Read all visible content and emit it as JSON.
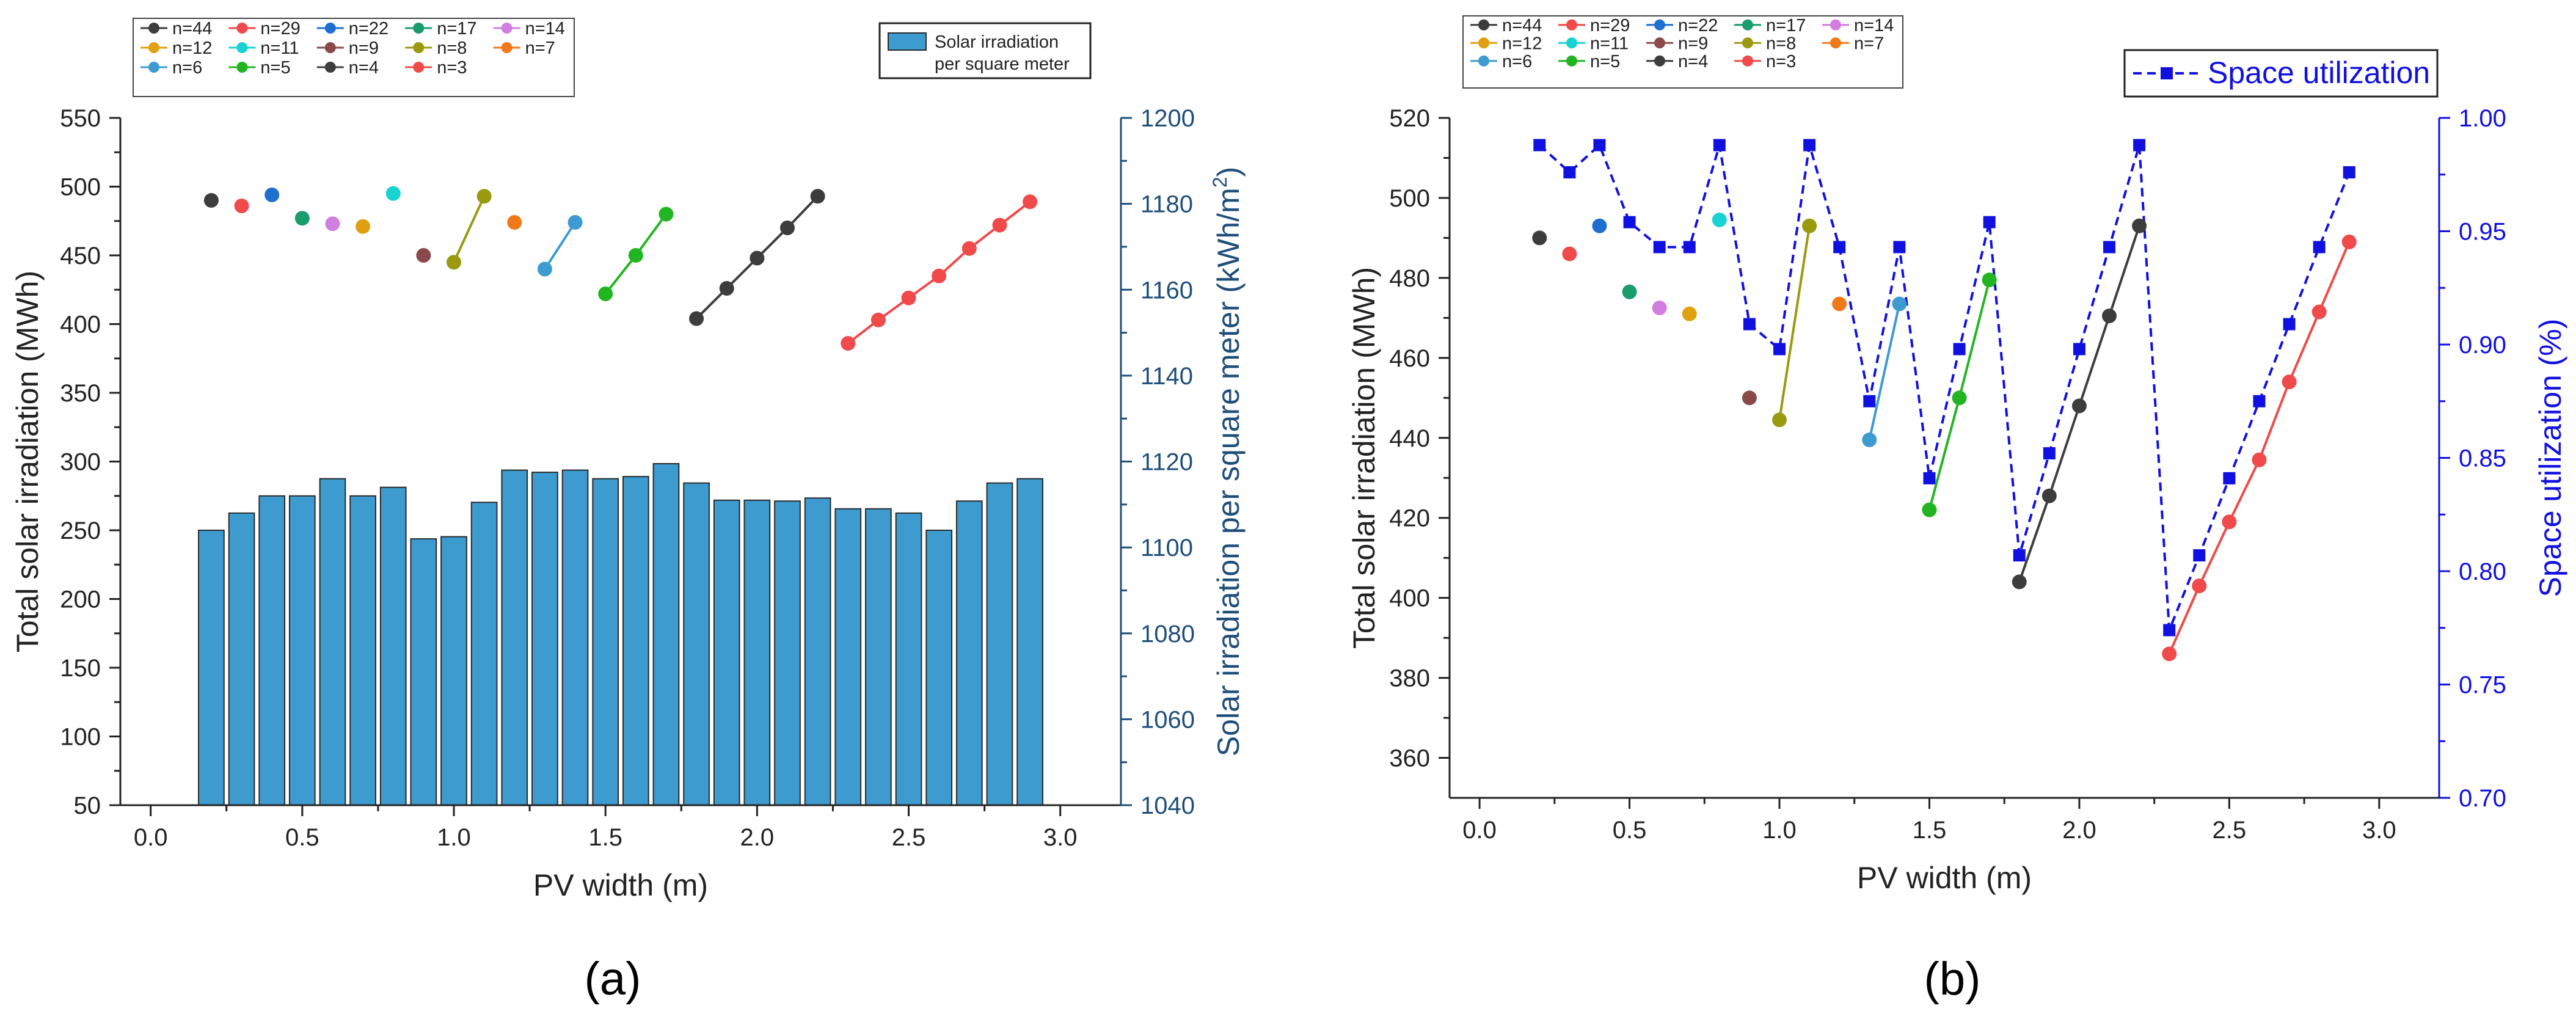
{
  "chart_data": [
    {
      "panel": "a",
      "caption": "(a)",
      "type": "scatter+bar",
      "xlabel": "PV width (m)",
      "ylabel_left": "Total solar irradiation (MWh)",
      "ylabel_right": "Solar irradiation  per square meter (kWh/m²)",
      "ylabel_right_parts": {
        "main": "Solar irradiation  per square meter (kWh/m",
        "sup": "2",
        "end": ")"
      },
      "xlim": [
        -0.1,
        3.2
      ],
      "ylim_left": [
        50,
        550
      ],
      "ylim_right": [
        1040,
        1200
      ],
      "xticks": [
        "0.0",
        "0.5",
        "1.0",
        "1.5",
        "2.0",
        "2.5",
        "3.0"
      ],
      "xtick_values": [
        0.0,
        0.5,
        1.0,
        1.5,
        2.0,
        2.5,
        3.0
      ],
      "yticks_left": [
        "50",
        "100",
        "150",
        "200",
        "250",
        "300",
        "350",
        "400",
        "450",
        "500",
        "550"
      ],
      "ytick_values_left": [
        50,
        100,
        150,
        200,
        250,
        300,
        350,
        400,
        450,
        500,
        550
      ],
      "yticks_right": [
        "1040",
        "1060",
        "1080",
        "1100",
        "1120",
        "1140",
        "1160",
        "1180",
        "1200"
      ],
      "ytick_values_right": [
        1040,
        1060,
        1080,
        1100,
        1120,
        1140,
        1160,
        1180,
        1200
      ],
      "bar_legend": [
        "Solar irradiation",
        "per square meter"
      ],
      "bar_color": "#3d9bd0",
      "bars": {
        "x": [
          0.2,
          0.3,
          0.4,
          0.5,
          0.6,
          0.7,
          0.8,
          0.9,
          1.0,
          1.1,
          1.2,
          1.3,
          1.4,
          1.5,
          1.6,
          1.7,
          1.8,
          1.9,
          2.0,
          2.1,
          2.2,
          2.3,
          2.4,
          2.5,
          2.6,
          2.7,
          2.8,
          2.9
        ],
        "values": [
          1104,
          1108,
          1112,
          1112,
          1116,
          1112,
          1114,
          1102,
          1102.5,
          1110.5,
          1118,
          1117.5,
          1118,
          1116,
          1116.5,
          1119.5,
          1115,
          1111,
          1111,
          1110.8,
          1111.5,
          1109,
          1109,
          1108,
          1104,
          1110.8,
          1115,
          1116
        ]
      },
      "series": [
        {
          "name": "n=44",
          "color": "#3d3d3d",
          "x": [
            0.2
          ],
          "y": [
            490
          ]
        },
        {
          "name": "n=29",
          "color": "#f04a4a",
          "x": [
            0.3
          ],
          "y": [
            486
          ]
        },
        {
          "name": "n=22",
          "color": "#1f6fd0",
          "x": [
            0.4
          ],
          "y": [
            494
          ]
        },
        {
          "name": "n=17",
          "color": "#1a9c6c",
          "x": [
            0.5
          ],
          "y": [
            477
          ]
        },
        {
          "name": "n=14",
          "color": "#d27ee0",
          "x": [
            0.6
          ],
          "y": [
            473
          ]
        },
        {
          "name": "n=12",
          "color": "#e0a010",
          "x": [
            0.7
          ],
          "y": [
            471
          ]
        },
        {
          "name": "n=11",
          "color": "#19d2d2",
          "x": [
            0.8
          ],
          "y": [
            495
          ]
        },
        {
          "name": "n=9",
          "color": "#8b4a4a",
          "x": [
            0.9
          ],
          "y": [
            450
          ]
        },
        {
          "name": "n=8",
          "color": "#9a9a10",
          "x": [
            1.0,
            1.1
          ],
          "y": [
            445,
            493
          ]
        },
        {
          "name": "n=7",
          "color": "#f07a1a",
          "x": [
            1.2
          ],
          "y": [
            474
          ]
        },
        {
          "name": "n=6",
          "color": "#3d9bd0",
          "x": [
            1.3,
            1.4
          ],
          "y": [
            440,
            474
          ]
        },
        {
          "name": "n=5",
          "color": "#22b522",
          "x": [
            1.5,
            1.6,
            1.7
          ],
          "y": [
            422,
            450,
            480
          ]
        },
        {
          "name": "n=4",
          "color": "#3d3d3d",
          "x": [
            1.8,
            1.9,
            2.0,
            2.1,
            2.2
          ],
          "y": [
            404,
            426,
            448,
            470,
            493
          ]
        },
        {
          "name": "n=3",
          "color": "#f04a4a",
          "x": [
            2.3,
            2.4,
            2.5,
            2.6,
            2.7,
            2.8,
            2.9
          ],
          "y": [
            386,
            403,
            419,
            435,
            455,
            472,
            489
          ]
        }
      ]
    },
    {
      "panel": "b",
      "caption": "(b)",
      "type": "scatter+line",
      "xlabel": "PV width (m)",
      "ylabel_left": "Total solar irradiation (MWh)",
      "ylabel_right": "Space utilization (%)",
      "xlim": [
        -0.1,
        3.2
      ],
      "ylim_left": [
        350,
        520
      ],
      "ylim_right": [
        0.7,
        1.0
      ],
      "xticks": [
        "0.0",
        "0.5",
        "1.0",
        "1.5",
        "2.0",
        "2.5",
        "3.0"
      ],
      "xtick_values": [
        0.0,
        0.5,
        1.0,
        1.5,
        2.0,
        2.5,
        3.0
      ],
      "yticks_left": [
        "360",
        "380",
        "400",
        "420",
        "440",
        "460",
        "480",
        "500",
        "520"
      ],
      "ytick_values_left": [
        360,
        380,
        400,
        420,
        440,
        460,
        480,
        500,
        520
      ],
      "yticks_right": [
        "0.70",
        "0.75",
        "0.80",
        "0.85",
        "0.90",
        "0.95",
        "1.00"
      ],
      "ytick_values_right": [
        0.7,
        0.75,
        0.8,
        0.85,
        0.9,
        0.95,
        1.0
      ],
      "line_legend": "Space utilization",
      "line_color": "#1010e0",
      "utilization": {
        "x": [
          0.2,
          0.3,
          0.4,
          0.5,
          0.6,
          0.7,
          0.8,
          0.9,
          1.0,
          1.1,
          1.2,
          1.3,
          1.4,
          1.5,
          1.6,
          1.7,
          1.8,
          1.9,
          2.0,
          2.1,
          2.2,
          2.3,
          2.4,
          2.5,
          2.6,
          2.7,
          2.8,
          2.9
        ],
        "values": [
          0.988,
          0.976,
          0.988,
          0.954,
          0.943,
          0.943,
          0.988,
          0.909,
          0.898,
          0.988,
          0.943,
          0.875,
          0.943,
          0.841,
          0.898,
          0.954,
          0.807,
          0.852,
          0.898,
          0.943,
          0.988,
          0.774,
          0.807,
          0.841,
          0.875,
          0.909,
          0.943,
          0.976
        ]
      },
      "series": [
        {
          "name": "n=44",
          "color": "#3d3d3d",
          "x": [
            0.2
          ],
          "y": [
            490
          ]
        },
        {
          "name": "n=29",
          "color": "#f04a4a",
          "x": [
            0.3
          ],
          "y": [
            486
          ]
        },
        {
          "name": "n=22",
          "color": "#1f6fd0",
          "x": [
            0.4
          ],
          "y": [
            493
          ]
        },
        {
          "name": "n=17",
          "color": "#1a9c6c",
          "x": [
            0.5
          ],
          "y": [
            476.5
          ]
        },
        {
          "name": "n=14",
          "color": "#d27ee0",
          "x": [
            0.6
          ],
          "y": [
            472.5
          ]
        },
        {
          "name": "n=12",
          "color": "#e0a010",
          "x": [
            0.7
          ],
          "y": [
            471
          ]
        },
        {
          "name": "n=11",
          "color": "#19d2d2",
          "x": [
            0.8
          ],
          "y": [
            494.5
          ]
        },
        {
          "name": "n=9",
          "color": "#8b4a4a",
          "x": [
            0.9
          ],
          "y": [
            450
          ]
        },
        {
          "name": "n=8",
          "color": "#9a9a10",
          "x": [
            1.0,
            1.1
          ],
          "y": [
            444.5,
            493
          ]
        },
        {
          "name": "n=7",
          "color": "#f07a1a",
          "x": [
            1.2
          ],
          "y": [
            473.5
          ]
        },
        {
          "name": "n=6",
          "color": "#3d9bd0",
          "x": [
            1.3,
            1.4
          ],
          "y": [
            439.5,
            473.5
          ]
        },
        {
          "name": "n=5",
          "color": "#22b522",
          "x": [
            1.5,
            1.6,
            1.7
          ],
          "y": [
            422,
            450,
            479.5
          ]
        },
        {
          "name": "n=4",
          "color": "#3d3d3d",
          "x": [
            1.8,
            1.9,
            2.0,
            2.1,
            2.2
          ],
          "y": [
            404,
            425.5,
            448,
            470.5,
            493
          ]
        },
        {
          "name": "n=3",
          "color": "#f04a4a",
          "x": [
            2.3,
            2.4,
            2.5,
            2.6,
            2.7,
            2.8,
            2.9
          ],
          "y": [
            386,
            403,
            419,
            434.5,
            454,
            471.5,
            489
          ]
        }
      ]
    }
  ]
}
